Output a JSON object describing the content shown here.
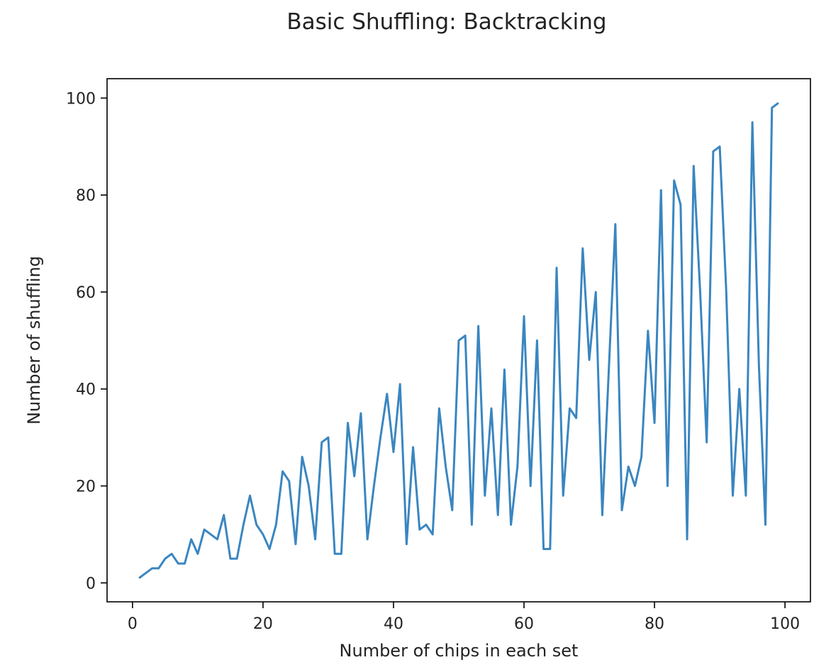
{
  "chart_data": {
    "type": "line",
    "title": "Basic Shuffling: Backtracking",
    "xlabel": "Number of chips in each set",
    "ylabel": "Number of shuffling",
    "xlim": [
      -3.9,
      103.9
    ],
    "ylim": [
      -3.9,
      104.0
    ],
    "xticks": [
      0,
      20,
      40,
      60,
      80,
      100
    ],
    "yticks": [
      0,
      20,
      40,
      60,
      80,
      100
    ],
    "grid": false,
    "colors": {
      "line": "#3a86c0",
      "axes": "#000000",
      "text": "#222222",
      "background": "#ffffff"
    },
    "series": [
      {
        "x": [
          1,
          2,
          3,
          4,
          5,
          6,
          7,
          8,
          9,
          10,
          11,
          12,
          13,
          14,
          15,
          16,
          17,
          18,
          19,
          20,
          21,
          22,
          23,
          24,
          25,
          26,
          27,
          28,
          29,
          30,
          31,
          32,
          33,
          34,
          35,
          36,
          37,
          38,
          39,
          40,
          41,
          42,
          43,
          44,
          45,
          46,
          47,
          48,
          49,
          50,
          51,
          52,
          53,
          54,
          55,
          56,
          57,
          58,
          59,
          60,
          61,
          62,
          63,
          64,
          65,
          66,
          67,
          68,
          69,
          70,
          71,
          72,
          73,
          74,
          75,
          76,
          77,
          78,
          79,
          80,
          81,
          82,
          83,
          84,
          85,
          86,
          87,
          88,
          89,
          90,
          91,
          92,
          93,
          94,
          95,
          96,
          97,
          98,
          99
        ],
        "values": [
          1,
          2,
          3,
          3,
          5,
          6,
          4,
          4,
          9,
          6,
          11,
          10,
          9,
          14,
          5,
          5,
          12,
          18,
          12,
          10,
          7,
          12,
          23,
          21,
          8,
          26,
          20,
          9,
          29,
          30,
          6,
          6,
          33,
          22,
          35,
          9,
          20,
          30,
          39,
          27,
          41,
          8,
          28,
          11,
          12,
          10,
          36,
          24,
          15,
          50,
          51,
          12,
          53,
          18,
          36,
          14,
          44,
          12,
          24,
          55,
          20,
          50,
          7,
          7,
          65,
          18,
          36,
          34,
          69,
          46,
          60,
          14,
          44,
          74,
          15,
          24,
          20,
          26,
          52,
          33,
          81,
          20,
          83,
          78,
          9,
          86,
          60,
          29,
          89,
          90,
          60,
          18,
          40,
          18,
          95,
          45,
          12,
          98,
          99
        ]
      }
    ]
  }
}
